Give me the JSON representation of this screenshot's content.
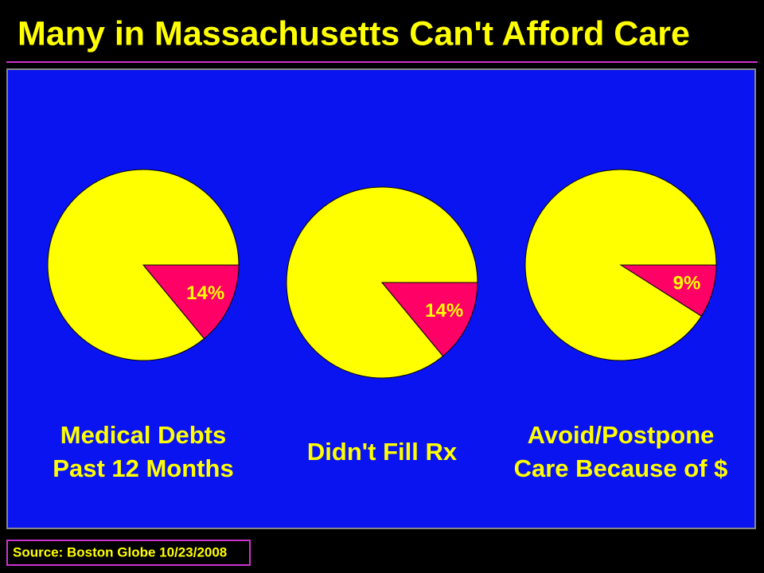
{
  "title": "Many in Massachusetts Can't Afford Care",
  "source": "Source: Boston Globe 10/23/2008",
  "chart_data": [
    {
      "type": "pie",
      "title": [
        "Medical Debts",
        "Past 12 Months"
      ],
      "values": [
        14,
        86
      ],
      "value_labels": [
        "14%",
        null
      ],
      "colors": [
        "#ff0066",
        "#ffff00"
      ]
    },
    {
      "type": "pie",
      "title": [
        "Didn't Fill Rx"
      ],
      "values": [
        14,
        86
      ],
      "value_labels": [
        "14%",
        null
      ],
      "colors": [
        "#ff0066",
        "#ffff00"
      ]
    },
    {
      "type": "pie",
      "title": [
        "Avoid/Postpone",
        "Care Because of $"
      ],
      "values": [
        9,
        91
      ],
      "value_labels": [
        "9%",
        null
      ],
      "colors": [
        "#ff0066",
        "#ffff00"
      ]
    }
  ]
}
